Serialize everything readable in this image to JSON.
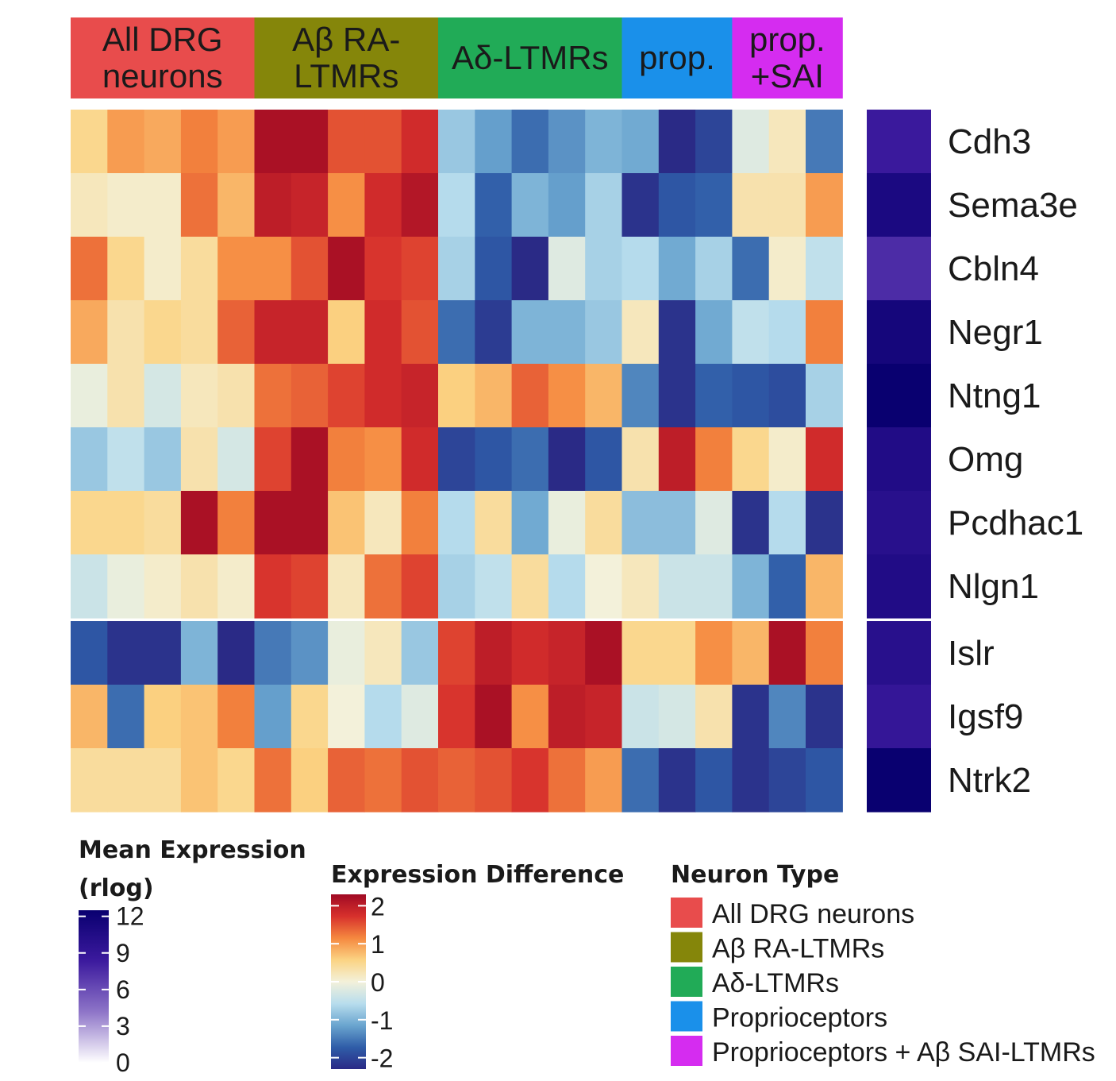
{
  "chart_data": {
    "type": "heatmap",
    "groups": [
      {
        "name": "All DRG neurons",
        "label_lines": [
          "All DRG",
          "neurons"
        ],
        "color": "#e84c4c",
        "count": 5
      },
      {
        "name": "Aβ RA-LTMRs",
        "label_lines": [
          "Aβ RA-",
          "LTMRs"
        ],
        "color": "#85860a",
        "count": 5
      },
      {
        "name": "Aδ-LTMRs",
        "label_lines": [
          "Aδ-LTMRs"
        ],
        "color": "#21ab57",
        "count": 5
      },
      {
        "name": "Proprioceptors",
        "label_lines": [
          "prop."
        ],
        "color": "#1a90ea",
        "count": 3
      },
      {
        "name": "Proprioceptors + Aβ SAI-LTMRs",
        "label_lines": [
          "prop.",
          "+SAI"
        ],
        "color": "#d52cf0",
        "count": 3
      }
    ],
    "genes": [
      "Cdh3",
      "Sema3e",
      "Cbln4",
      "Negr1",
      "Ntng1",
      "Omg",
      "Pcdhac1",
      "Nlgn1",
      "Islr",
      "Igsf9",
      "Ntrk2"
    ],
    "row_split_after": 8,
    "values": [
      [
        0.5,
        1.0,
        0.9,
        1.2,
        1.0,
        2.2,
        2.2,
        1.5,
        1.5,
        1.8,
        -0.8,
        -1.2,
        -1.6,
        -1.3,
        -1.0,
        -1.1,
        -2.3,
        -2.0,
        -0.2,
        0.2,
        -1.5
      ],
      [
        0.2,
        0.1,
        0.1,
        1.3,
        0.8,
        2.0,
        1.9,
        1.1,
        1.8,
        2.1,
        -0.6,
        -1.7,
        -1.0,
        -1.2,
        -0.7,
        -2.2,
        -1.8,
        -1.7,
        0.3,
        0.3,
        1.0
      ],
      [
        1.3,
        0.5,
        0.1,
        0.4,
        1.1,
        1.1,
        1.5,
        2.2,
        1.7,
        1.6,
        -0.7,
        -1.8,
        -2.3,
        -0.2,
        -0.7,
        -0.6,
        -1.1,
        -0.7,
        -1.6,
        0.1,
        -0.5
      ],
      [
        0.9,
        0.3,
        0.5,
        0.4,
        1.4,
        1.9,
        1.9,
        0.6,
        1.8,
        1.5,
        -1.6,
        -2.1,
        -1.0,
        -1.0,
        -0.8,
        0.2,
        -2.2,
        -1.1,
        -0.5,
        -0.6,
        1.2
      ],
      [
        -0.1,
        0.3,
        -0.3,
        0.2,
        0.3,
        1.3,
        1.4,
        1.6,
        1.8,
        1.9,
        0.6,
        0.8,
        1.4,
        1.1,
        0.8,
        -1.4,
        -2.2,
        -1.7,
        -1.8,
        -1.9,
        -0.7
      ],
      [
        -0.8,
        -0.5,
        -0.8,
        0.3,
        -0.3,
        1.6,
        2.2,
        1.2,
        1.1,
        1.8,
        -2.0,
        -1.8,
        -1.6,
        -2.3,
        -1.8,
        0.3,
        2.0,
        1.2,
        0.5,
        0.1,
        1.8
      ],
      [
        0.5,
        0.5,
        0.4,
        2.2,
        1.2,
        2.2,
        2.2,
        0.7,
        0.2,
        1.2,
        -0.6,
        0.4,
        -1.1,
        -0.1,
        0.4,
        -0.9,
        -0.9,
        -0.2,
        -2.2,
        -0.6,
        -2.2
      ],
      [
        -0.4,
        -0.1,
        0.1,
        0.3,
        0.1,
        1.7,
        1.6,
        0.2,
        1.3,
        1.6,
        -0.7,
        -0.5,
        0.4,
        -0.6,
        0.0,
        0.2,
        -0.4,
        -0.4,
        -1.0,
        -1.7,
        0.8
      ],
      [
        -1.8,
        -2.2,
        -2.2,
        -1.0,
        -2.3,
        -1.5,
        -1.3,
        -0.1,
        0.2,
        -0.8,
        1.6,
        2.0,
        1.8,
        1.9,
        2.2,
        0.5,
        0.5,
        1.1,
        0.8,
        2.2,
        1.2
      ],
      [
        0.8,
        -1.6,
        0.6,
        0.7,
        1.2,
        -1.2,
        0.5,
        0.0,
        -0.6,
        -0.2,
        1.7,
        2.2,
        1.1,
        2.0,
        1.9,
        -0.4,
        -0.3,
        0.3,
        -2.2,
        -1.4,
        -2.2
      ],
      [
        0.4,
        0.4,
        0.4,
        0.7,
        0.5,
        1.3,
        0.6,
        1.4,
        1.3,
        1.5,
        1.4,
        1.5,
        1.7,
        1.3,
        1.0,
        -1.6,
        -2.2,
        -1.8,
        -2.2,
        -2.0,
        -1.8
      ]
    ],
    "mean_expression": [
      8.5,
      11.0,
      7.5,
      11.5,
      12.5,
      10.5,
      10.0,
      10.5,
      10.0,
      9.0,
      13.0
    ],
    "legends": {
      "mean_expression": {
        "title_lines": [
          "Mean Expression",
          "(rlog)"
        ],
        "ticks": [
          "12",
          "9",
          "6",
          "3",
          "0"
        ],
        "range": [
          0,
          12.5
        ]
      },
      "difference": {
        "title": "Expression Difference",
        "ticks": [
          "2",
          "1",
          "0",
          "-1",
          "-2"
        ],
        "range": [
          -2.3,
          2.3
        ]
      },
      "neuron_type": {
        "title": "Neuron Type"
      }
    },
    "legend_items": [
      "All DRG neurons",
      "Aβ RA-LTMRs",
      "Aδ-LTMRs",
      "Proprioceptors",
      "Proprioceptors + Aβ SAI-LTMRs"
    ],
    "colors": {
      "diverging": [
        "#2a2a86",
        "#2f5da8",
        "#6aa5cf",
        "#b8dded",
        "#f3f1da",
        "#fbd383",
        "#f5883f",
        "#d7302c",
        "#a00a24"
      ],
      "sequential": [
        "#ffffff",
        "#8e75c8",
        "#3c1a9e",
        "#090070"
      ]
    }
  }
}
